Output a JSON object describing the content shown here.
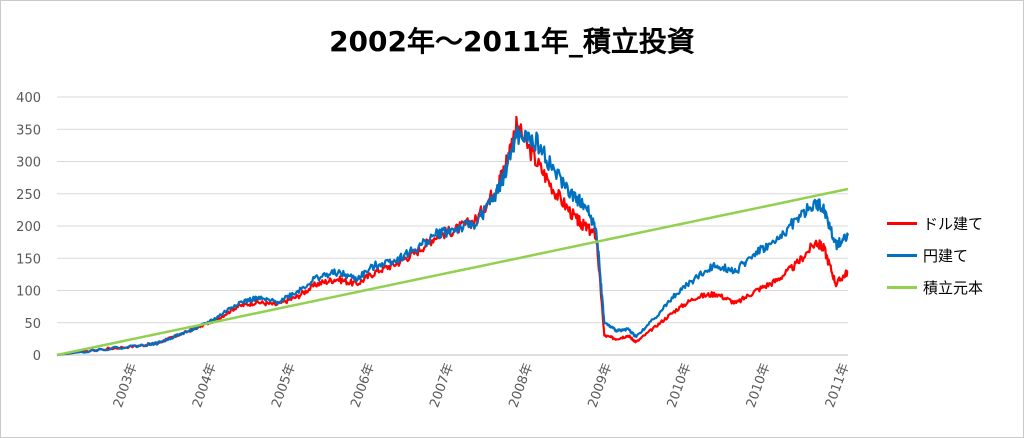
{
  "chart_data": {
    "type": "line",
    "title": "2002年～2011年_積立投資",
    "xlabel": "",
    "ylabel": "",
    "ylim": [
      0,
      400
    ],
    "yticks": [
      0,
      50,
      100,
      150,
      200,
      250,
      300,
      350,
      400
    ],
    "x_tick_labels": [
      "2003年",
      "2004年",
      "2005年",
      "2006年",
      "2007年",
      "2008年",
      "2009年",
      "2010年",
      "2010年",
      "2011年"
    ],
    "grid": "horizontal",
    "legend_position": "right",
    "x": [
      2002.0,
      2002.5,
      2003.0,
      2003.25,
      2003.5,
      2003.75,
      2004.0,
      2004.25,
      2004.5,
      2004.75,
      2005.0,
      2005.25,
      2005.5,
      2005.75,
      2006.0,
      2006.25,
      2006.5,
      2006.75,
      2007.0,
      2007.25,
      2007.5,
      2007.6,
      2007.75,
      2008.0,
      2008.25,
      2008.5,
      2008.6,
      2008.75,
      2008.85,
      2009.0,
      2009.15,
      2009.25,
      2009.5,
      2009.75,
      2010.0,
      2010.25,
      2010.5,
      2010.75,
      2011.0,
      2011.25,
      2011.5,
      2011.6,
      2011.75,
      2011.9
    ],
    "series": [
      {
        "name": "ドル建て",
        "color": "#ff0000",
        "values": [
          0,
          8,
          14,
          18,
          30,
          42,
          55,
          75,
          82,
          78,
          90,
          110,
          118,
          110,
          130,
          142,
          160,
          185,
          195,
          210,
          260,
          290,
          355,
          300,
          250,
          210,
          200,
          185,
          30,
          25,
          30,
          20,
          45,
          70,
          90,
          95,
          80,
          100,
          115,
          140,
          175,
          165,
          110,
          130
        ]
      },
      {
        "name": "円建て",
        "color": "#0070c0",
        "values": [
          0,
          8,
          14,
          18,
          30,
          42,
          58,
          80,
          88,
          82,
          98,
          120,
          128,
          118,
          140,
          148,
          165,
          188,
          195,
          205,
          250,
          280,
          340,
          330,
          280,
          240,
          235,
          195,
          50,
          38,
          40,
          28,
          60,
          95,
          120,
          140,
          130,
          160,
          175,
          210,
          235,
          225,
          170,
          185
        ]
      },
      {
        "name": "積立元本",
        "color": "#92d050",
        "values": [
          0,
          13,
          26,
          32.5,
          39,
          45.5,
          52,
          58.5,
          65,
          71.5,
          78,
          84.5,
          91,
          97.5,
          104,
          110.5,
          117,
          123.5,
          130,
          136.5,
          143,
          145.6,
          149.5,
          156,
          162.5,
          169,
          171.6,
          175.5,
          178.1,
          182,
          185.9,
          188.5,
          195,
          201.5,
          208,
          214.5,
          221,
          227.5,
          234,
          240.5,
          247,
          249.6,
          253.5,
          257.4
        ]
      }
    ]
  }
}
